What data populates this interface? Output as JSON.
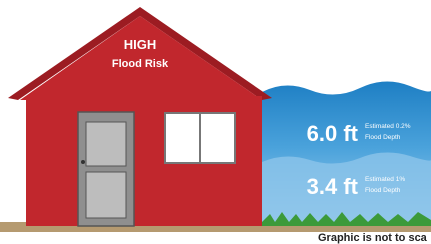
{
  "house": {
    "risk_level": "HIGH",
    "risk_label": "Flood Risk"
  },
  "depths": [
    {
      "depth": "6.0 ft",
      "note_lines": [
        "Estimated 0.2%",
        "Flood Depth"
      ]
    },
    {
      "depth": "3.4 ft",
      "note_lines": [
        "Estimated 1%",
        "Flood Depth"
      ]
    }
  ],
  "footer": {
    "note": "Graphic is not to sca"
  }
}
